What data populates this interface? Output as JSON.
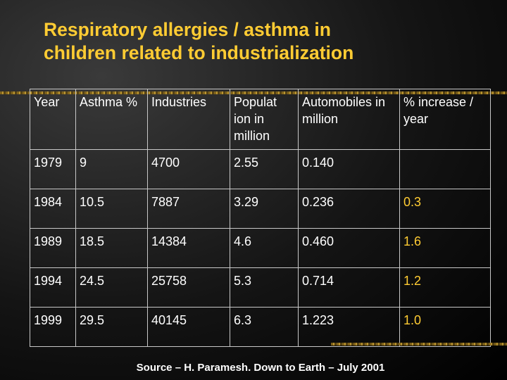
{
  "slide": {
    "title_line1": "Respiratory allergies / asthma in",
    "title_line2": "children related to industrialization",
    "source": "Source – H. Paramesh. Down to Earth – July 2001"
  },
  "table": {
    "headers": [
      "Year",
      "Asthma %",
      "Industries",
      "Populat ion in million",
      "Automobiles in million",
      "% increase / year"
    ],
    "rows": [
      [
        "1979",
        "9",
        "4700",
        "2.55",
        "0.140",
        ""
      ],
      [
        "1984",
        "10.5",
        "7887",
        "3.29",
        "0.236",
        "0.3"
      ],
      [
        "1989",
        "18.5",
        "14384",
        "4.6",
        "0.460",
        "1.6"
      ],
      [
        "1994",
        "24.5",
        "25758",
        "5.3",
        "0.714",
        "1.2"
      ],
      [
        "1999",
        "29.5",
        "40145",
        "6.3",
        "1.223",
        "1.0"
      ]
    ]
  },
  "colors": {
    "title": "#ffcc33",
    "text": "#ffffff",
    "increase_values": "#ffcc33",
    "background": "#141414"
  }
}
